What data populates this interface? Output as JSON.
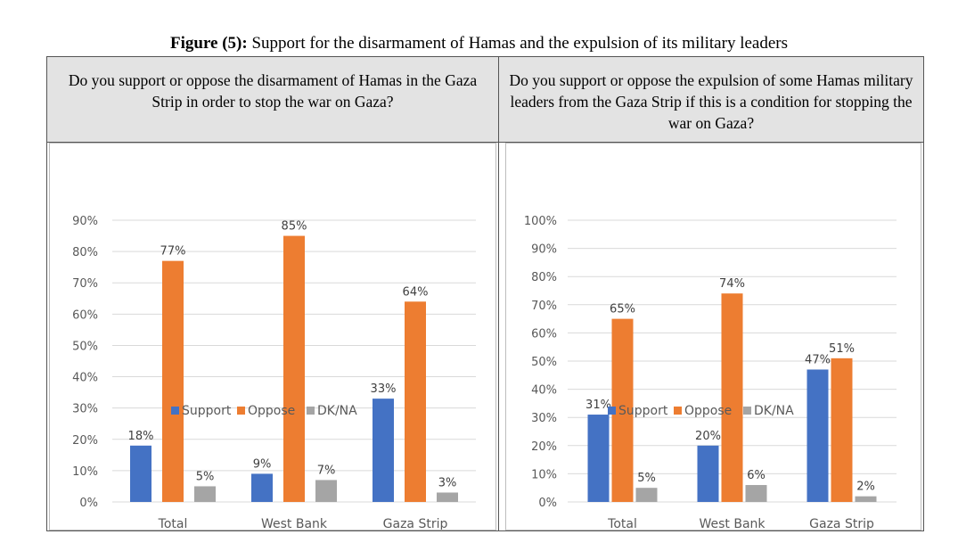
{
  "figure": {
    "label": "Figure (5):",
    "title": " Support for the disarmament of Hamas and the expulsion of its military leaders"
  },
  "panels": {
    "left": {
      "question": "Do you support or oppose the disarmament of Hamas in the Gaza Strip in order to stop the war on Gaza?"
    },
    "right": {
      "question": "Do you support or oppose the expulsion of some Hamas military leaders from the Gaza Strip if this is a condition for stopping the war on Gaza?"
    }
  },
  "colors": {
    "Support": "#4472c4",
    "Oppose": "#ed7d31",
    "DK/NA": "#a5a5a5"
  },
  "chart_data": [
    {
      "type": "bar",
      "categories": [
        "Total",
        "West Bank",
        "Gaza Strip"
      ],
      "series": [
        {
          "name": "Support",
          "values": [
            18,
            9,
            33
          ],
          "labels": [
            "18%",
            "9%",
            "33%"
          ]
        },
        {
          "name": "Oppose",
          "values": [
            77,
            85,
            64
          ],
          "labels": [
            "77%",
            "85%",
            "64%"
          ]
        },
        {
          "name": "DK/NA",
          "values": [
            5,
            7,
            3
          ],
          "labels": [
            "5%",
            "7%",
            "3%"
          ]
        }
      ],
      "ylim": [
        0,
        90
      ],
      "yticks": [
        "0%",
        "10%",
        "20%",
        "30%",
        "40%",
        "50%",
        "60%",
        "70%",
        "80%",
        "90%"
      ],
      "grid": true,
      "legend": "bottom"
    },
    {
      "type": "bar",
      "categories": [
        "Total",
        "West Bank",
        "Gaza Strip"
      ],
      "series": [
        {
          "name": "Support",
          "values": [
            31,
            20,
            47
          ],
          "labels": [
            "31%",
            "20%",
            "47%"
          ]
        },
        {
          "name": "Oppose",
          "values": [
            65,
            74,
            51
          ],
          "labels": [
            "65%",
            "74%",
            "51%"
          ]
        },
        {
          "name": "DK/NA",
          "values": [
            5,
            6,
            2
          ],
          "labels": [
            "5%",
            "6%",
            "2%"
          ]
        }
      ],
      "ylim": [
        0,
        100
      ],
      "yticks": [
        "0%",
        "10%",
        "20%",
        "30%",
        "40%",
        "50%",
        "60%",
        "70%",
        "80%",
        "90%",
        "100%"
      ],
      "grid": true,
      "legend": "bottom"
    }
  ]
}
